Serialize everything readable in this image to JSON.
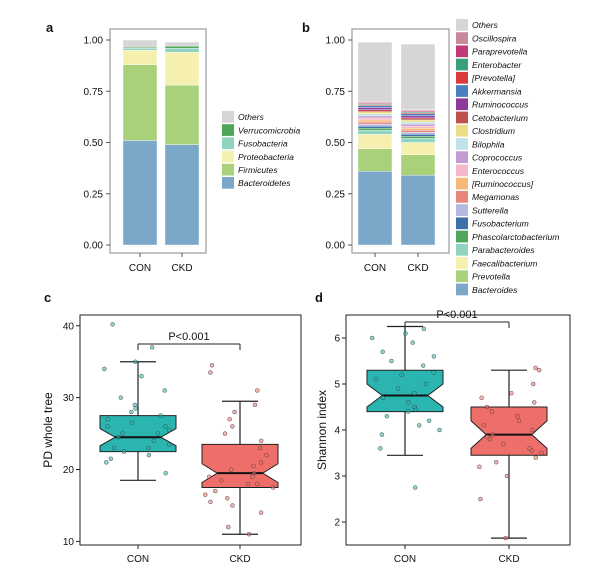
{
  "panel_letters": [
    "a",
    "b",
    "c",
    "d"
  ],
  "chart_data": [
    {
      "type": "bar",
      "stacked": true,
      "panel": "a",
      "categories": [
        "CON",
        "CKD"
      ],
      "yticks": [
        "0.00",
        "0.25",
        "0.50",
        "0.75",
        "1.00"
      ],
      "ylim": [
        0,
        1
      ],
      "legend_position": "right",
      "series": [
        {
          "name": "Bacteroidetes",
          "color": "#7ba7c9",
          "values": [
            0.51,
            0.49
          ]
        },
        {
          "name": "Firmicutes",
          "color": "#a8d17a",
          "values": [
            0.37,
            0.29
          ]
        },
        {
          "name": "Proteobacteria",
          "color": "#f5f0b0",
          "values": [
            0.07,
            0.16
          ]
        },
        {
          "name": "Fusobacteria",
          "color": "#8fd4c0",
          "values": [
            0.01,
            0.02
          ]
        },
        {
          "name": "Verrucomicrobia",
          "color": "#4fa55a",
          "values": [
            0.005,
            0.01
          ]
        },
        {
          "name": "Others",
          "color": "#d6d6d6",
          "values": [
            0.035,
            0.02
          ]
        }
      ]
    },
    {
      "type": "bar",
      "stacked": true,
      "panel": "b",
      "categories": [
        "CON",
        "CKD"
      ],
      "yticks": [
        "0.00",
        "0.25",
        "0.50",
        "0.75",
        "1.00"
      ],
      "ylim": [
        0,
        1
      ],
      "legend_position": "right",
      "series": [
        {
          "name": "Bacteroides",
          "color": "#7ba7c9",
          "values": [
            0.36,
            0.34
          ]
        },
        {
          "name": "Prevotella",
          "color": "#a8d17a",
          "values": [
            0.11,
            0.1
          ]
        },
        {
          "name": "Faecalibacterium",
          "color": "#f5f0b0",
          "values": [
            0.07,
            0.06
          ]
        },
        {
          "name": "Parabacteroides",
          "color": "#8fd4c0",
          "values": [
            0.02,
            0.02
          ]
        },
        {
          "name": "Phascolarctobacterium",
          "color": "#4fa55a",
          "values": [
            0.01,
            0.01
          ]
        },
        {
          "name": "Fusobacterium",
          "color": "#3f6fa8",
          "values": [
            0.01,
            0.01
          ]
        },
        {
          "name": "Sutterella",
          "color": "#b3b8e0",
          "values": [
            0.01,
            0.01
          ]
        },
        {
          "name": "Megamonas",
          "color": "#e8867a",
          "values": [
            0.01,
            0.01
          ]
        },
        {
          "name": "[Ruminococcus]",
          "color": "#f7b97a",
          "values": [
            0.01,
            0.01
          ]
        },
        {
          "name": "Enterococcus",
          "color": "#f5b8c8",
          "values": [
            0.01,
            0.01
          ]
        },
        {
          "name": "Coprococcus",
          "color": "#c39bd3",
          "values": [
            0.01,
            0.01
          ]
        },
        {
          "name": "Bilophila",
          "color": "#bfe3e8",
          "values": [
            0.01,
            0.01
          ]
        },
        {
          "name": "Clostridium",
          "color": "#eadd86",
          "values": [
            0.01,
            0.01
          ]
        },
        {
          "name": "Cetobacterium",
          "color": "#c0504d",
          "values": [
            0.01,
            0.01
          ]
        },
        {
          "name": "Ruminococcus",
          "color": "#8e3a9a",
          "values": [
            0.01,
            0.01
          ]
        },
        {
          "name": "Akkermansia",
          "color": "#4a80c0",
          "values": [
            0.01,
            0.01
          ]
        },
        {
          "name": "[Prevotella]",
          "color": "#d93a3a",
          "values": [
            0.005,
            0.005
          ]
        },
        {
          "name": "Enterobacter",
          "color": "#3aa07a",
          "values": [
            0.005,
            0.005
          ]
        },
        {
          "name": "Paraprevotella",
          "color": "#c03a7a",
          "values": [
            0.005,
            0.005
          ]
        },
        {
          "name": "Oscillospira",
          "color": "#c8899a",
          "values": [
            0.005,
            0.005
          ]
        },
        {
          "name": "Others",
          "color": "#d6d6d6",
          "values": [
            0.29,
            0.32
          ]
        }
      ]
    },
    {
      "type": "box",
      "panel": "c",
      "categories": [
        "CON",
        "CKD"
      ],
      "ylabel": "PD whole tree",
      "yticks": [
        "10",
        "20",
        "30",
        "40"
      ],
      "ylim": [
        9.5,
        41.5
      ],
      "annotation": "P<0.001",
      "colors": [
        "#2bb5b0",
        "#ee6f6a"
      ],
      "boxes": [
        {
          "group": "CON",
          "min": 18.5,
          "q1": 22.5,
          "median": 24.5,
          "q3": 27.5,
          "max": 35,
          "notch": 1.2
        },
        {
          "group": "CKD",
          "min": 11,
          "q1": 17.5,
          "median": 19.5,
          "q3": 23.5,
          "max": 29.5,
          "notch": 1.3
        }
      ],
      "points": [
        {
          "group": "CON",
          "values": [
            21,
            22,
            22.5,
            23,
            23.5,
            24,
            24.5,
            25,
            25.5,
            26,
            26.5,
            27,
            27.5,
            28,
            29,
            30,
            31,
            33,
            34,
            35,
            37,
            40.2,
            19.5,
            21.5,
            23,
            25,
            26,
            28.5
          ]
        },
        {
          "group": "CKD",
          "values": [
            11,
            12,
            14,
            15,
            16,
            16.5,
            17,
            17.5,
            18,
            18.5,
            19,
            19.5,
            20,
            20.5,
            21,
            22,
            23,
            24,
            25,
            26,
            27,
            28,
            29,
            31,
            33.5,
            34.5,
            15.5,
            18,
            19
          ]
        }
      ]
    },
    {
      "type": "box",
      "panel": "d",
      "categories": [
        "CON",
        "CKD"
      ],
      "ylabel": "Shannon index",
      "yticks": [
        "2",
        "3",
        "4",
        "5",
        "6"
      ],
      "ylim": [
        1.5,
        6.5
      ],
      "annotation": "P<0.001",
      "colors": [
        "#2bb5b0",
        "#ee6f6a"
      ],
      "boxes": [
        {
          "group": "CON",
          "min": 3.45,
          "q1": 4.4,
          "median": 4.75,
          "q3": 5.3,
          "max": 6.25,
          "notch": 0.25
        },
        {
          "group": "CKD",
          "min": 1.65,
          "q1": 3.45,
          "median": 3.9,
          "q3": 4.5,
          "max": 5.3,
          "notch": 0.3
        }
      ],
      "points": [
        {
          "group": "CON",
          "values": [
            2.75,
            3.6,
            3.9,
            4.0,
            4.1,
            4.2,
            4.3,
            4.4,
            4.45,
            4.5,
            4.6,
            4.7,
            4.8,
            4.9,
            5.0,
            5.1,
            5.2,
            5.25,
            5.4,
            5.5,
            5.6,
            5.7,
            5.9,
            6.0,
            6.1,
            6.2
          ]
        },
        {
          "group": "CKD",
          "values": [
            1.65,
            2.5,
            3.0,
            3.2,
            3.3,
            3.4,
            3.5,
            3.6,
            3.7,
            3.8,
            3.9,
            4.0,
            4.1,
            4.2,
            4.3,
            4.4,
            4.5,
            4.6,
            4.7,
            4.8,
            5.0,
            5.3,
            5.35,
            3.55,
            3.85
          ]
        }
      ]
    }
  ]
}
